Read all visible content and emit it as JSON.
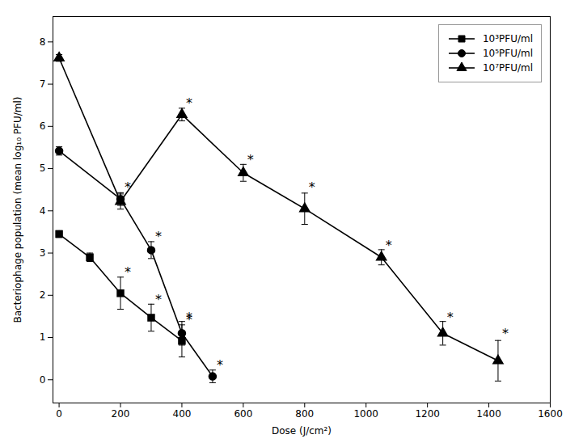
{
  "chart_data": {
    "type": "line",
    "xlabel": "Dose (J/cm²)",
    "ylabel": "Bacteriophage population (mean log₁₀ PFU/ml)",
    "xlim": [
      -20,
      1600
    ],
    "ylim": [
      -0.55,
      8.6
    ],
    "xticks": [
      0,
      200,
      400,
      600,
      800,
      1000,
      1200,
      1400,
      1600
    ],
    "yticks": [
      0,
      1,
      2,
      3,
      4,
      5,
      6,
      7,
      8
    ],
    "color": "black",
    "grid": false,
    "legend": "upper right",
    "series": [
      {
        "name": "10³PFU/ml",
        "marker": "square",
        "x": [
          0,
          100,
          200,
          300,
          400
        ],
        "values": [
          3.45,
          2.9,
          2.05,
          1.47,
          0.92
        ],
        "yerr": [
          0.08,
          0.1,
          0.38,
          0.32,
          0.38
        ],
        "annotations": [
          {
            "x": 200,
            "y": 2.55,
            "text": "*"
          },
          {
            "x": 300,
            "y": 1.9,
            "text": "*"
          },
          {
            "x": 400,
            "y": 1.42,
            "text": "*"
          }
        ]
      },
      {
        "name": "10⁵PFU/ml",
        "marker": "circle",
        "x": [
          0,
          200,
          300,
          400,
          500
        ],
        "values": [
          5.42,
          4.28,
          3.07,
          1.1,
          0.08
        ],
        "yerr": [
          0.1,
          0.15,
          0.2,
          0.28,
          0.15
        ],
        "annotations": [
          {
            "x": 200,
            "y": 4.55,
            "text": "*"
          },
          {
            "x": 300,
            "y": 3.38,
            "text": "*"
          },
          {
            "x": 400,
            "y": 1.48,
            "text": "*"
          },
          {
            "x": 500,
            "y": 0.35,
            "text": "*"
          }
        ]
      },
      {
        "name": "10⁷PFU/ml",
        "marker": "triangle",
        "x": [
          0,
          200,
          400,
          600,
          800,
          1050,
          1250,
          1430
        ],
        "values": [
          7.62,
          4.22,
          6.28,
          4.9,
          4.05,
          2.9,
          1.1,
          0.45
        ],
        "yerr": [
          0.08,
          0.18,
          0.15,
          0.2,
          0.37,
          0.18,
          0.28,
          0.48
        ],
        "annotations": [
          {
            "x": 400,
            "y": 6.55,
            "text": "*"
          },
          {
            "x": 600,
            "y": 5.2,
            "text": "*"
          },
          {
            "x": 800,
            "y": 4.55,
            "text": "*"
          },
          {
            "x": 1050,
            "y": 3.18,
            "text": "*"
          },
          {
            "x": 1250,
            "y": 1.48,
            "text": "*"
          },
          {
            "x": 1430,
            "y": 1.08,
            "text": "*"
          }
        ]
      }
    ]
  }
}
